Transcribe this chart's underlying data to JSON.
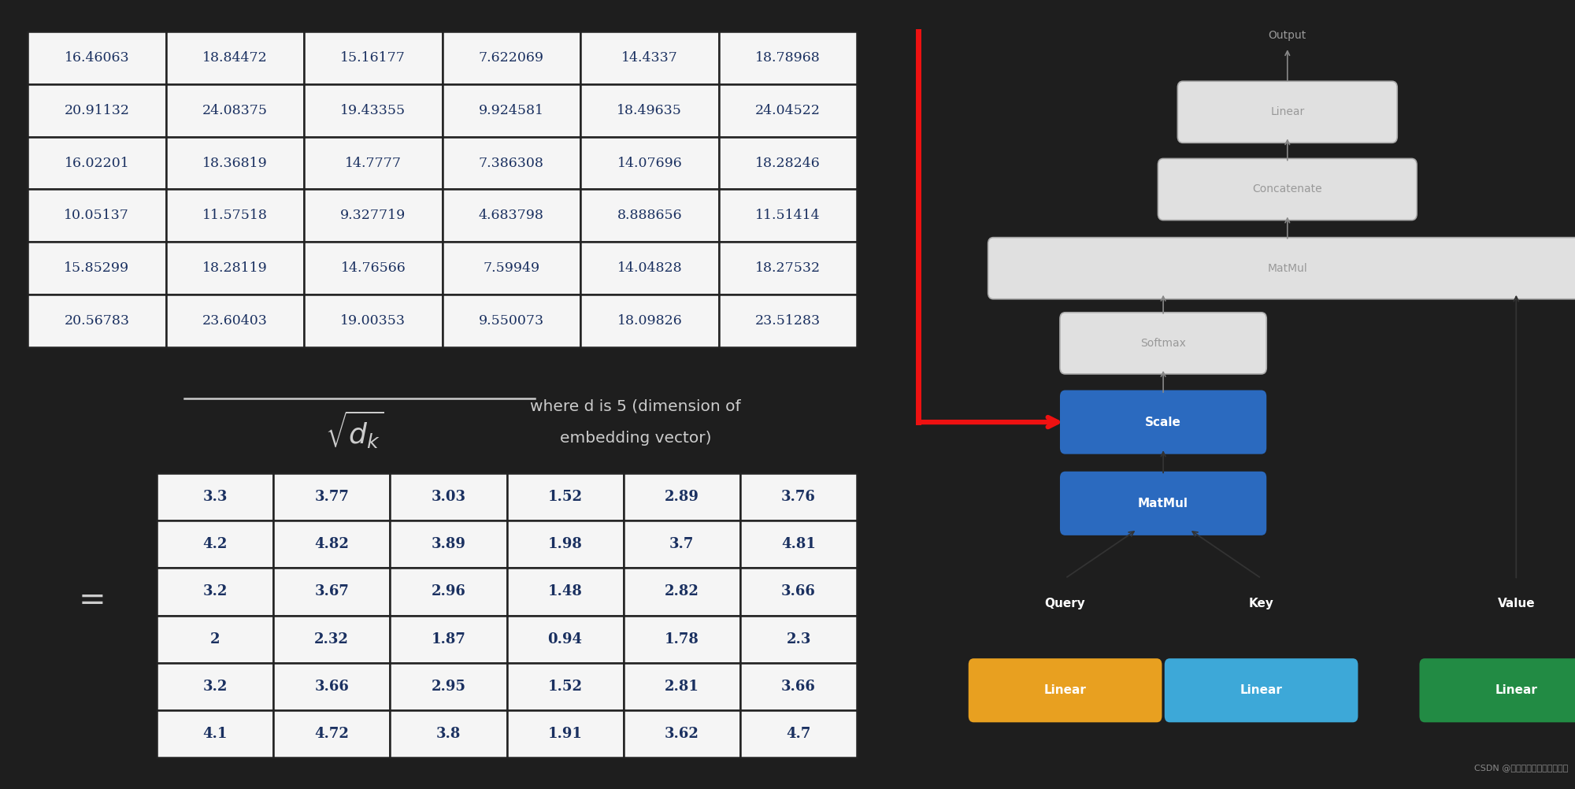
{
  "top_table": [
    [
      "16.46063",
      "18.84472",
      "15.16177",
      "7.622069",
      "14.4337",
      "18.78968"
    ],
    [
      "20.91132",
      "24.08375",
      "19.43355",
      "9.924581",
      "18.49635",
      "24.04522"
    ],
    [
      "16.02201",
      "18.36819",
      "14.7777",
      "7.386308",
      "14.07696",
      "18.28246"
    ],
    [
      "10.05137",
      "11.57518",
      "9.327719",
      "4.683798",
      "8.888656",
      "11.51414"
    ],
    [
      "15.85299",
      "18.28119",
      "14.76566",
      "7.59949",
      "14.04828",
      "18.27532"
    ],
    [
      "20.56783",
      "23.60403",
      "19.00353",
      "9.550073",
      "18.09826",
      "23.51283"
    ]
  ],
  "bottom_table": [
    [
      "3.3",
      "3.77",
      "3.03",
      "1.52",
      "2.89",
      "3.76"
    ],
    [
      "4.2",
      "4.82",
      "3.89",
      "1.98",
      "3.7",
      "4.81"
    ],
    [
      "3.2",
      "3.67",
      "2.96",
      "1.48",
      "2.82",
      "3.66"
    ],
    [
      "2",
      "2.32",
      "1.87",
      "0.94",
      "1.78",
      "2.3"
    ],
    [
      "3.2",
      "3.66",
      "2.95",
      "1.52",
      "2.81",
      "3.66"
    ],
    [
      "4.1",
      "4.72",
      "3.8",
      "1.91",
      "3.62",
      "4.7"
    ]
  ],
  "text_where_line1": "where d is 5 (dimension of",
  "text_where_line2": "embedding vector)",
  "bg_color": "#1e1e1e",
  "table_bg": "#1e1e1e",
  "table_cell_bg": "#f5f5f5",
  "table_text_color": "#1a3060",
  "bottom_table_text_color": "#1a3060",
  "table_border_color": "#222222",
  "math_text_color": "#cccccc",
  "where_text_color": "#cccccc",
  "equals_color": "#cccccc",
  "diagram_box_gray_light": "#e0e0e0",
  "diagram_box_gray_edge": "#aaaaaa",
  "diagram_box_gray_text": "#999999",
  "diagram_box_blue_dark": "#2b6abf",
  "diagram_box_blue_light": "#3da8d8",
  "diagram_box_yellow": "#e8a020",
  "diagram_box_green": "#228b44",
  "red_color": "#ee1111",
  "arrow_gray": "#888888",
  "arrow_dark": "#333333",
  "watermark_color": "#888888",
  "watermark_text": "CSDN @禅与计算机程序设计艺术"
}
